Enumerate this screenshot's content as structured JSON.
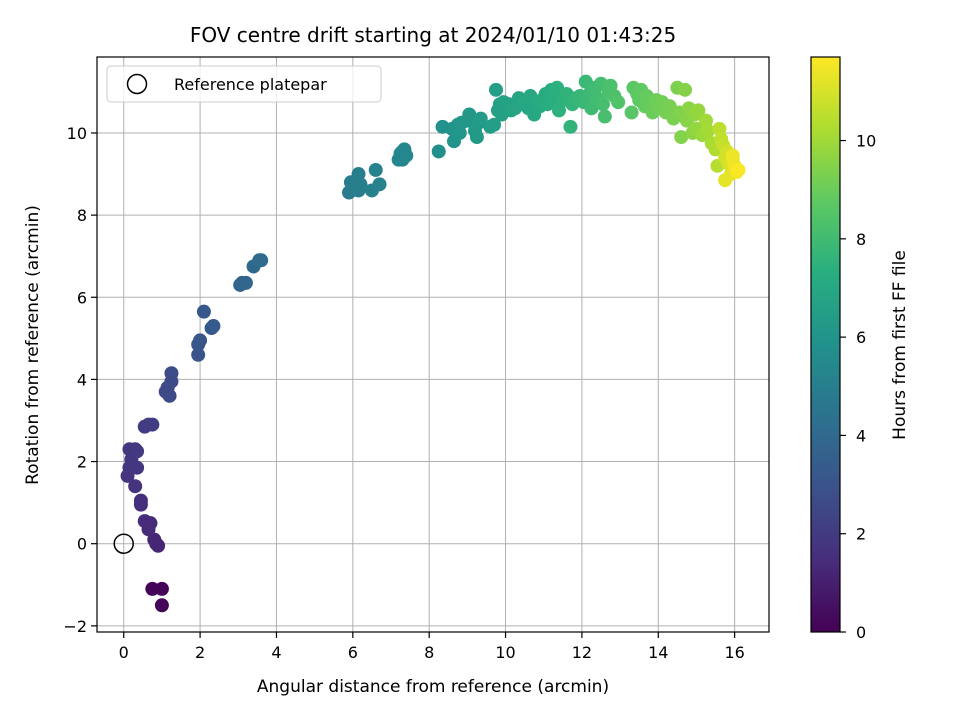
{
  "chart_data": {
    "type": "scatter",
    "title": "FOV centre drift starting at 2024/01/10 01:43:25",
    "xlabel": "Angular distance from reference (arcmin)",
    "ylabel": "Rotation from reference (arcmin)",
    "xlim": [
      -0.7,
      16.9
    ],
    "ylim": [
      -2.15,
      11.85
    ],
    "xticks": [
      "0",
      "2",
      "4",
      "6",
      "8",
      "10",
      "12",
      "14",
      "16"
    ],
    "yticks": [
      "−2",
      "0",
      "2",
      "4",
      "6",
      "8",
      "10"
    ],
    "grid": true,
    "legend": {
      "label": "Reference platepar",
      "location": "upper left"
    },
    "reference_point": {
      "x": 0,
      "y": 0
    },
    "colorbar": {
      "label": "Hours from first FF file",
      "colormap": "viridis",
      "min": 0,
      "max": 11.7,
      "ticks": [
        "0",
        "2",
        "4",
        "6",
        "8",
        "10"
      ]
    },
    "points": [
      [
        0.75,
        -1.1,
        0.1
      ],
      [
        1.0,
        -1.1,
        0.1
      ],
      [
        1.0,
        -1.5,
        0.1
      ],
      [
        0.85,
        0.0,
        1.2
      ],
      [
        0.9,
        -0.05,
        1.2
      ],
      [
        0.8,
        0.1,
        1.25
      ],
      [
        0.65,
        0.35,
        1.4
      ],
      [
        0.55,
        0.55,
        1.45
      ],
      [
        0.7,
        0.5,
        1.4
      ],
      [
        0.45,
        0.95,
        1.6
      ],
      [
        0.45,
        1.05,
        1.6
      ],
      [
        0.3,
        1.4,
        1.7
      ],
      [
        0.35,
        1.85,
        1.8
      ],
      [
        0.1,
        1.65,
        1.75
      ],
      [
        0.15,
        1.85,
        1.8
      ],
      [
        0.2,
        2.05,
        1.85
      ],
      [
        0.25,
        2.2,
        1.9
      ],
      [
        0.3,
        2.3,
        1.9
      ],
      [
        0.15,
        2.3,
        1.9
      ],
      [
        0.35,
        2.25,
        1.92
      ],
      [
        0.55,
        2.85,
        2.0
      ],
      [
        0.65,
        2.9,
        2.05
      ],
      [
        0.75,
        2.9,
        2.1
      ],
      [
        1.2,
        3.6,
        2.55
      ],
      [
        1.15,
        3.8,
        2.55
      ],
      [
        1.1,
        3.7,
        2.6
      ],
      [
        1.25,
        3.95,
        2.65
      ],
      [
        1.25,
        4.15,
        2.7
      ],
      [
        1.95,
        4.6,
        3.0
      ],
      [
        1.95,
        4.85,
        3.05
      ],
      [
        2.0,
        4.95,
        3.1
      ],
      [
        2.1,
        5.65,
        3.2
      ],
      [
        2.3,
        5.25,
        3.3
      ],
      [
        2.35,
        5.3,
        3.3
      ],
      [
        3.1,
        6.35,
        3.8
      ],
      [
        3.05,
        6.3,
        3.8
      ],
      [
        3.2,
        6.35,
        3.85
      ],
      [
        3.4,
        6.75,
        3.95
      ],
      [
        3.55,
        6.9,
        4.0
      ],
      [
        3.6,
        6.9,
        4.0
      ],
      [
        5.9,
        8.55,
        4.8
      ],
      [
        5.95,
        8.8,
        4.85
      ],
      [
        6.05,
        8.65,
        4.9
      ],
      [
        6.15,
        8.6,
        4.95
      ],
      [
        6.2,
        8.75,
        5.0
      ],
      [
        6.15,
        9.0,
        5.0
      ],
      [
        6.5,
        8.6,
        5.1
      ],
      [
        6.6,
        9.1,
        5.15
      ],
      [
        6.7,
        8.75,
        5.15
      ],
      [
        7.2,
        9.35,
        5.35
      ],
      [
        7.3,
        9.35,
        5.35
      ],
      [
        7.35,
        9.6,
        5.4
      ],
      [
        7.3,
        9.55,
        5.4
      ],
      [
        7.4,
        9.45,
        5.45
      ],
      [
        7.25,
        9.5,
        5.4
      ],
      [
        8.25,
        9.55,
        5.8
      ],
      [
        8.35,
        10.15,
        5.9
      ],
      [
        8.6,
        10.1,
        5.95
      ],
      [
        8.65,
        9.8,
        6.0
      ],
      [
        8.75,
        10.2,
        6.05
      ],
      [
        8.8,
        10.0,
        6.1
      ],
      [
        8.85,
        10.25,
        6.1
      ],
      [
        9.0,
        10.3,
        6.15
      ],
      [
        9.05,
        10.45,
        6.2
      ],
      [
        9.2,
        10.05,
        6.25
      ],
      [
        9.25,
        9.9,
        6.3
      ],
      [
        9.3,
        10.25,
        6.3
      ],
      [
        9.35,
        10.35,
        6.35
      ],
      [
        9.6,
        10.15,
        6.45
      ],
      [
        9.7,
        10.2,
        6.5
      ],
      [
        9.75,
        11.05,
        6.5
      ],
      [
        9.8,
        10.55,
        6.55
      ],
      [
        9.85,
        10.7,
        6.6
      ],
      [
        9.9,
        10.45,
        6.6
      ],
      [
        9.95,
        10.75,
        6.65
      ],
      [
        10.1,
        10.7,
        6.7
      ],
      [
        10.15,
        10.55,
        6.75
      ],
      [
        10.25,
        10.6,
        6.8
      ],
      [
        10.35,
        10.85,
        6.85
      ],
      [
        10.5,
        10.75,
        6.9
      ],
      [
        10.6,
        10.6,
        6.95
      ],
      [
        10.65,
        10.9,
        7.0
      ],
      [
        10.75,
        10.45,
        7.0
      ],
      [
        10.8,
        10.75,
        7.05
      ],
      [
        10.9,
        10.65,
        7.1
      ],
      [
        10.95,
        10.8,
        7.15
      ],
      [
        11.05,
        10.95,
        7.2
      ],
      [
        11.1,
        10.7,
        7.25
      ],
      [
        11.2,
        11.05,
        7.3
      ],
      [
        11.25,
        10.85,
        7.35
      ],
      [
        11.35,
        11.1,
        7.4
      ],
      [
        11.4,
        10.55,
        7.45
      ],
      [
        11.5,
        10.8,
        7.5
      ],
      [
        11.6,
        10.95,
        7.55
      ],
      [
        11.7,
        10.15,
        7.6
      ],
      [
        11.75,
        10.7,
        7.65
      ],
      [
        11.85,
        10.85,
        7.7
      ],
      [
        11.95,
        10.9,
        7.75
      ],
      [
        12.05,
        10.75,
        7.8
      ],
      [
        12.1,
        11.25,
        7.85
      ],
      [
        12.2,
        10.95,
        7.9
      ],
      [
        12.25,
        10.6,
        7.95
      ],
      [
        12.35,
        11.1,
        8.0
      ],
      [
        12.4,
        10.85,
        8.05
      ],
      [
        12.5,
        11.2,
        8.1
      ],
      [
        12.55,
        10.7,
        8.15
      ],
      [
        12.6,
        10.4,
        8.2
      ],
      [
        12.7,
        11.0,
        8.25
      ],
      [
        12.75,
        11.15,
        8.3
      ],
      [
        12.85,
        10.9,
        8.35
      ],
      [
        12.95,
        10.75,
        8.4
      ],
      [
        13.3,
        10.5,
        8.6
      ],
      [
        13.35,
        11.1,
        8.65
      ],
      [
        13.45,
        10.95,
        8.7
      ],
      [
        13.5,
        10.8,
        8.75
      ],
      [
        13.55,
        11.05,
        8.8
      ],
      [
        13.65,
        10.65,
        8.85
      ],
      [
        13.7,
        10.9,
        8.9
      ],
      [
        13.8,
        10.7,
        8.95
      ],
      [
        13.85,
        10.5,
        9.0
      ],
      [
        13.95,
        10.8,
        9.05
      ],
      [
        14.0,
        10.6,
        9.1
      ],
      [
        14.1,
        10.75,
        9.15
      ],
      [
        14.2,
        10.5,
        9.2
      ],
      [
        14.3,
        10.65,
        9.25
      ],
      [
        14.4,
        10.35,
        9.3
      ],
      [
        14.5,
        11.1,
        9.35
      ],
      [
        14.55,
        10.5,
        9.4
      ],
      [
        14.6,
        9.9,
        9.45
      ],
      [
        14.7,
        11.05,
        9.5
      ],
      [
        14.75,
        10.3,
        9.55
      ],
      [
        14.8,
        10.6,
        9.6
      ],
      [
        14.9,
        10.0,
        9.65
      ],
      [
        14.95,
        10.45,
        9.7
      ],
      [
        15.0,
        10.1,
        9.75
      ],
      [
        15.05,
        10.55,
        9.8
      ],
      [
        15.15,
        9.95,
        9.9
      ],
      [
        15.25,
        10.3,
        10.0
      ],
      [
        15.3,
        10.05,
        10.05
      ],
      [
        15.4,
        9.75,
        10.15
      ],
      [
        15.5,
        9.6,
        10.3
      ],
      [
        15.55,
        9.2,
        10.4
      ],
      [
        15.6,
        10.1,
        10.5
      ],
      [
        15.65,
        9.85,
        10.6
      ],
      [
        15.7,
        9.7,
        10.7
      ],
      [
        15.75,
        9.4,
        10.85
      ],
      [
        15.8,
        9.55,
        10.95
      ],
      [
        15.85,
        9.25,
        11.05
      ],
      [
        15.9,
        9.0,
        11.2
      ],
      [
        15.75,
        8.85,
        11.25
      ],
      [
        15.95,
        9.35,
        11.35
      ],
      [
        16.0,
        9.2,
        11.45
      ],
      [
        16.05,
        9.05,
        11.55
      ],
      [
        16.1,
        9.1,
        11.65
      ],
      [
        15.95,
        9.45,
        11.4
      ]
    ]
  }
}
